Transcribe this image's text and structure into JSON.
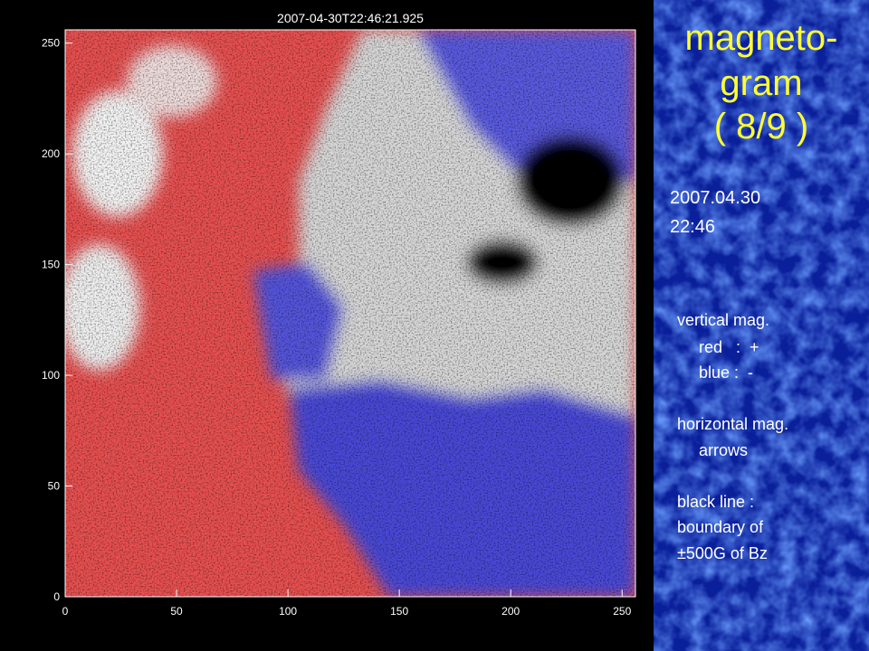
{
  "plot": {
    "title": "2007-04-30T22:46:21.925",
    "xlim": [
      0,
      256
    ],
    "ylim": [
      0,
      256
    ],
    "xticks": [
      0,
      50,
      100,
      150,
      200,
      250
    ],
    "yticks": [
      0,
      50,
      100,
      150,
      200,
      250
    ]
  },
  "panel": {
    "title_lines": [
      "magneto-",
      "gram",
      "( 8/9 )"
    ],
    "date": "2007.04.30",
    "time": "22:46",
    "legend": [
      "vertical mag.",
      "red   :  +",
      "blue :  -",
      "horizontal mag.",
      "arrows",
      "black line :",
      "boundary of",
      "±500G of Bz"
    ]
  }
}
